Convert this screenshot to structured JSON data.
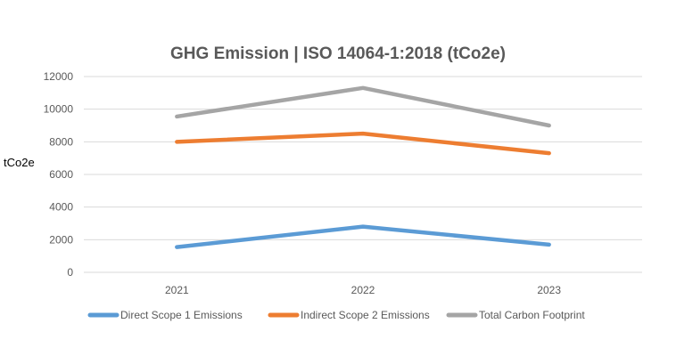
{
  "chart_data": {
    "type": "line",
    "title": "GHG Emission | ISO 14064-1:2018 (tCo2e)",
    "xlabel": "",
    "ylabel": "tCo2e",
    "categories": [
      "2021",
      "2022",
      "2023"
    ],
    "ylim": [
      0,
      12000
    ],
    "yticks": [
      0,
      2000,
      4000,
      6000,
      8000,
      10000,
      12000
    ],
    "grid": true,
    "legend_position": "bottom",
    "series": [
      {
        "name": "Direct Scope 1 Emissions",
        "values": [
          1550,
          2800,
          1700
        ],
        "color": "#5B9BD5"
      },
      {
        "name": "Indirect Scope 2 Emissions",
        "values": [
          8000,
          8500,
          7300
        ],
        "color": "#ED7D31"
      },
      {
        "name": "Total Carbon Footprint",
        "values": [
          9550,
          11300,
          9000
        ],
        "color": "#A5A5A5"
      }
    ]
  }
}
